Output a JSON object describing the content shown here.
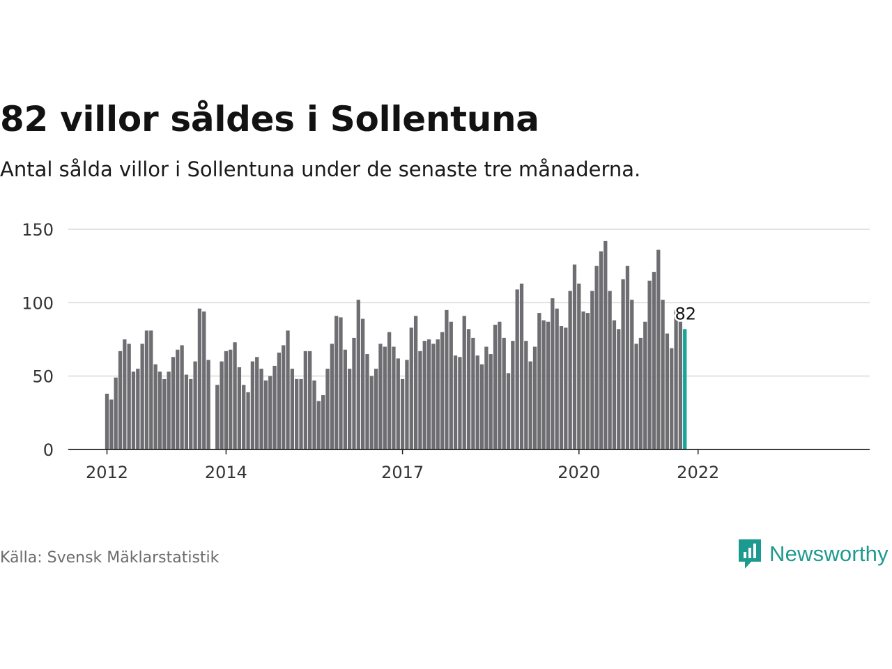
{
  "title": "82 villor såldes i Sollentuna",
  "subtitle": "Antal sålda villor i Sollentuna under de senaste tre månaderna.",
  "source": "Källa: Svensk Mäklarstatistik",
  "brand": {
    "name": "Newsworthy",
    "icon": "newsworthy-logo-icon",
    "color": "#1d9a8f"
  },
  "colors": {
    "bar": "#6e6d72",
    "highlight": "#17a597",
    "grid": "#d9d9d9",
    "axis": "#222222"
  },
  "chart_data": {
    "type": "bar",
    "title": "82 villor såldes i Sollentuna",
    "xlabel": "",
    "ylabel": "",
    "ylim": [
      0,
      150
    ],
    "yticks": [
      0,
      50,
      100,
      150
    ],
    "grid": true,
    "x_tick_labels": [
      "2012",
      "2014",
      "2017",
      "2020",
      "2022"
    ],
    "x_tick_indices": [
      0,
      27,
      67,
      107,
      134
    ],
    "start": "2012-01",
    "highlight_label": "82",
    "series": [
      {
        "values": [
          38,
          34,
          49,
          67,
          75,
          72,
          53,
          55,
          72,
          81,
          81,
          58,
          53,
          48,
          53,
          63,
          68,
          71,
          51,
          48,
          60,
          96,
          94,
          61,
          null,
          44,
          60,
          67,
          68,
          73,
          56,
          44,
          39,
          60,
          63,
          55,
          47,
          50,
          57,
          66,
          71,
          81,
          55,
          48,
          48,
          67,
          67,
          47,
          33,
          37,
          55,
          72,
          91,
          90,
          68,
          55,
          76,
          102,
          89,
          65,
          50,
          55,
          72,
          70,
          80,
          70,
          62,
          48,
          61,
          83,
          91,
          67,
          74,
          75,
          72,
          75,
          80,
          95,
          87,
          64,
          63,
          91,
          82,
          76,
          64,
          58,
          70,
          65,
          85,
          87,
          76,
          52,
          74,
          109,
          113,
          74,
          60,
          70,
          93,
          88,
          87,
          103,
          96,
          84,
          83,
          108,
          126,
          113,
          94,
          93,
          108,
          125,
          135,
          142,
          108,
          88,
          82,
          116,
          125,
          102,
          72,
          76,
          87,
          115,
          121,
          136,
          102,
          79,
          69,
          95,
          87,
          82
        ]
      }
    ]
  }
}
